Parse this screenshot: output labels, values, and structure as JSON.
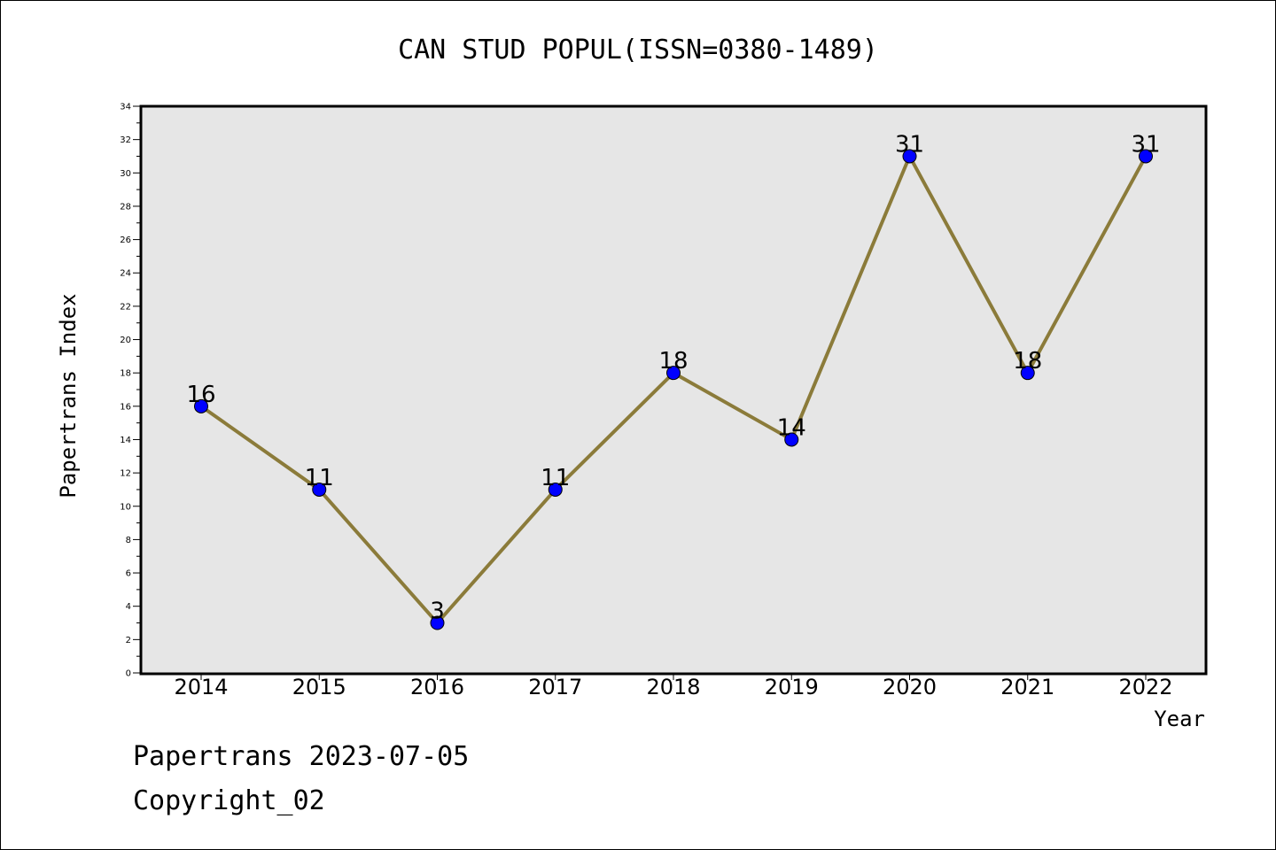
{
  "chart_data": {
    "type": "line",
    "title": "CAN STUD POPUL(ISSN=0380-1489)",
    "xlabel": "Year",
    "ylabel": "Papertrans Index",
    "categories": [
      "2014",
      "2015",
      "2016",
      "2017",
      "2018",
      "2019",
      "2020",
      "2021",
      "2022"
    ],
    "series": [
      {
        "values": [
          16,
          11,
          3,
          11,
          18,
          14,
          31,
          18,
          31
        ]
      }
    ],
    "ylim": [
      0,
      34
    ],
    "yticks": [
      "0",
      "2",
      "4",
      "6",
      "8",
      "10",
      "12",
      "14",
      "16",
      "18",
      "20",
      "22",
      "24",
      "26",
      "28",
      "30",
      "32",
      "34"
    ],
    "data_labels": [
      "16",
      "11",
      "3",
      "11",
      "18",
      "14",
      "31",
      "18",
      "31"
    ],
    "grid": false,
    "colors": {
      "plot_background": "#e6e6e6",
      "line": "#8b7b3a",
      "marker": "#0000ff"
    }
  },
  "footer": {
    "line1": "Papertrans 2023-07-05",
    "line2": "Copyright_02"
  }
}
